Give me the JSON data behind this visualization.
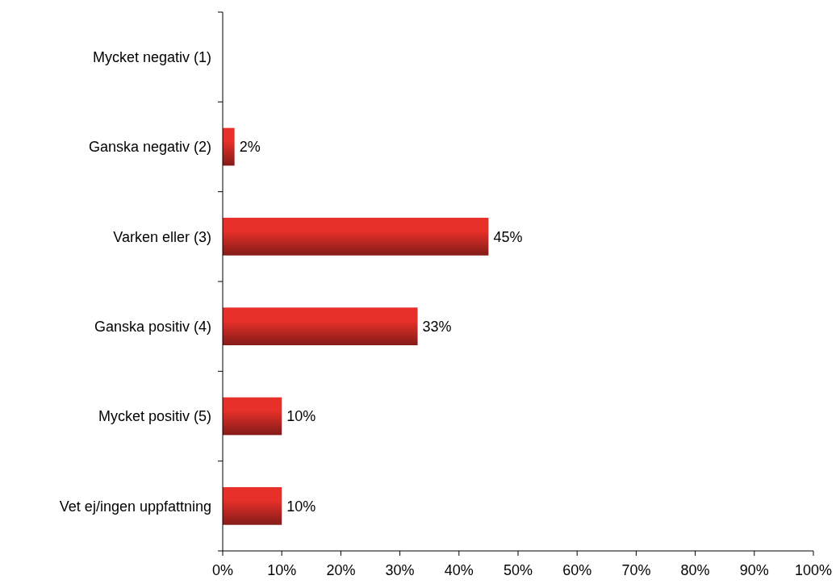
{
  "chart_data": {
    "type": "bar",
    "orientation": "horizontal",
    "categories": [
      "Mycket negativ (1)",
      "Ganska negativ (2)",
      "Varken eller (3)",
      "Ganska positiv (4)",
      "Mycket positiv (5)",
      "Vet ej/ingen uppfattning"
    ],
    "values": [
      0,
      2,
      45,
      33,
      10,
      10
    ],
    "value_labels": [
      null,
      "2%",
      "45%",
      "33%",
      "10%",
      "10%"
    ],
    "color": "#e8302a",
    "xlim": [
      0,
      100
    ],
    "xticks": [
      {
        "value": 0,
        "label": "0%"
      },
      {
        "value": 10,
        "label": "10%"
      },
      {
        "value": 20,
        "label": "20%"
      },
      {
        "value": 30,
        "label": "30%"
      },
      {
        "value": 40,
        "label": "40%"
      },
      {
        "value": 50,
        "label": "50%"
      },
      {
        "value": 60,
        "label": "60%"
      },
      {
        "value": 70,
        "label": "70%"
      },
      {
        "value": 80,
        "label": "80%"
      },
      {
        "value": 90,
        "label": "90%"
      },
      {
        "value": 100,
        "label": "100%"
      }
    ],
    "grid": false
  }
}
